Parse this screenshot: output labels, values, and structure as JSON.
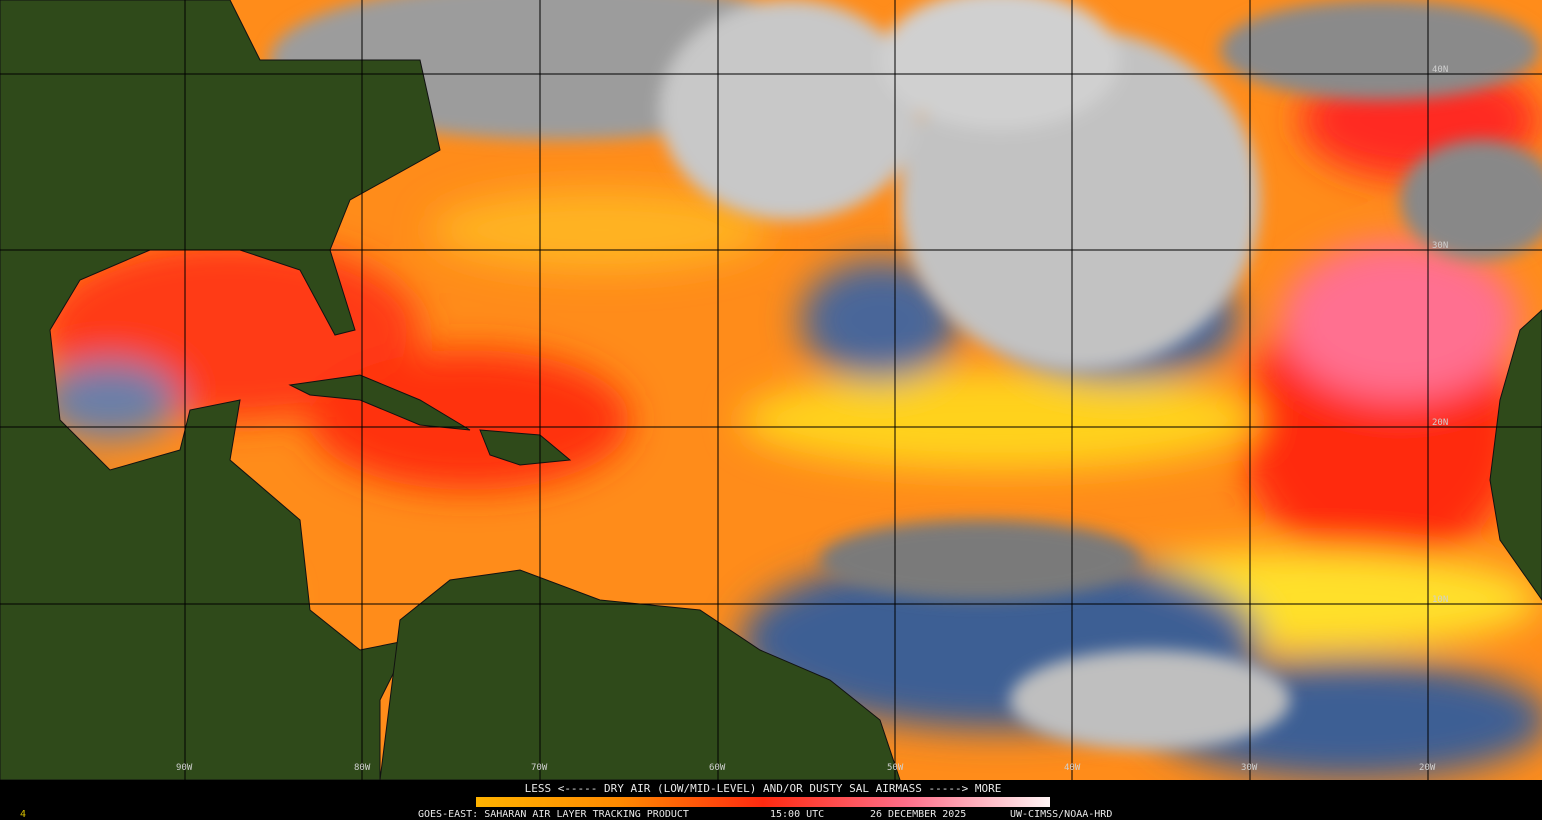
{
  "colorbar": {
    "caption": "LESS <----- DRY AIR (LOW/MID-LEVEL) AND/OR DUSTY SAL AIRMASS -----> MORE"
  },
  "footer": {
    "product": "GOES-EAST: SAHARAN AIR LAYER TRACKING PRODUCT",
    "time": "15:00 UTC",
    "date": "26 DECEMBER 2025",
    "credit": "UW-CIMSS/NOAA-HRD"
  },
  "frame_number": "4",
  "latitude_labels": [
    "40N",
    "30N",
    "20N",
    "10N"
  ],
  "longitude_labels": [
    "90W",
    "80W",
    "70W",
    "60W",
    "50W",
    "40W",
    "30W",
    "20W"
  ]
}
